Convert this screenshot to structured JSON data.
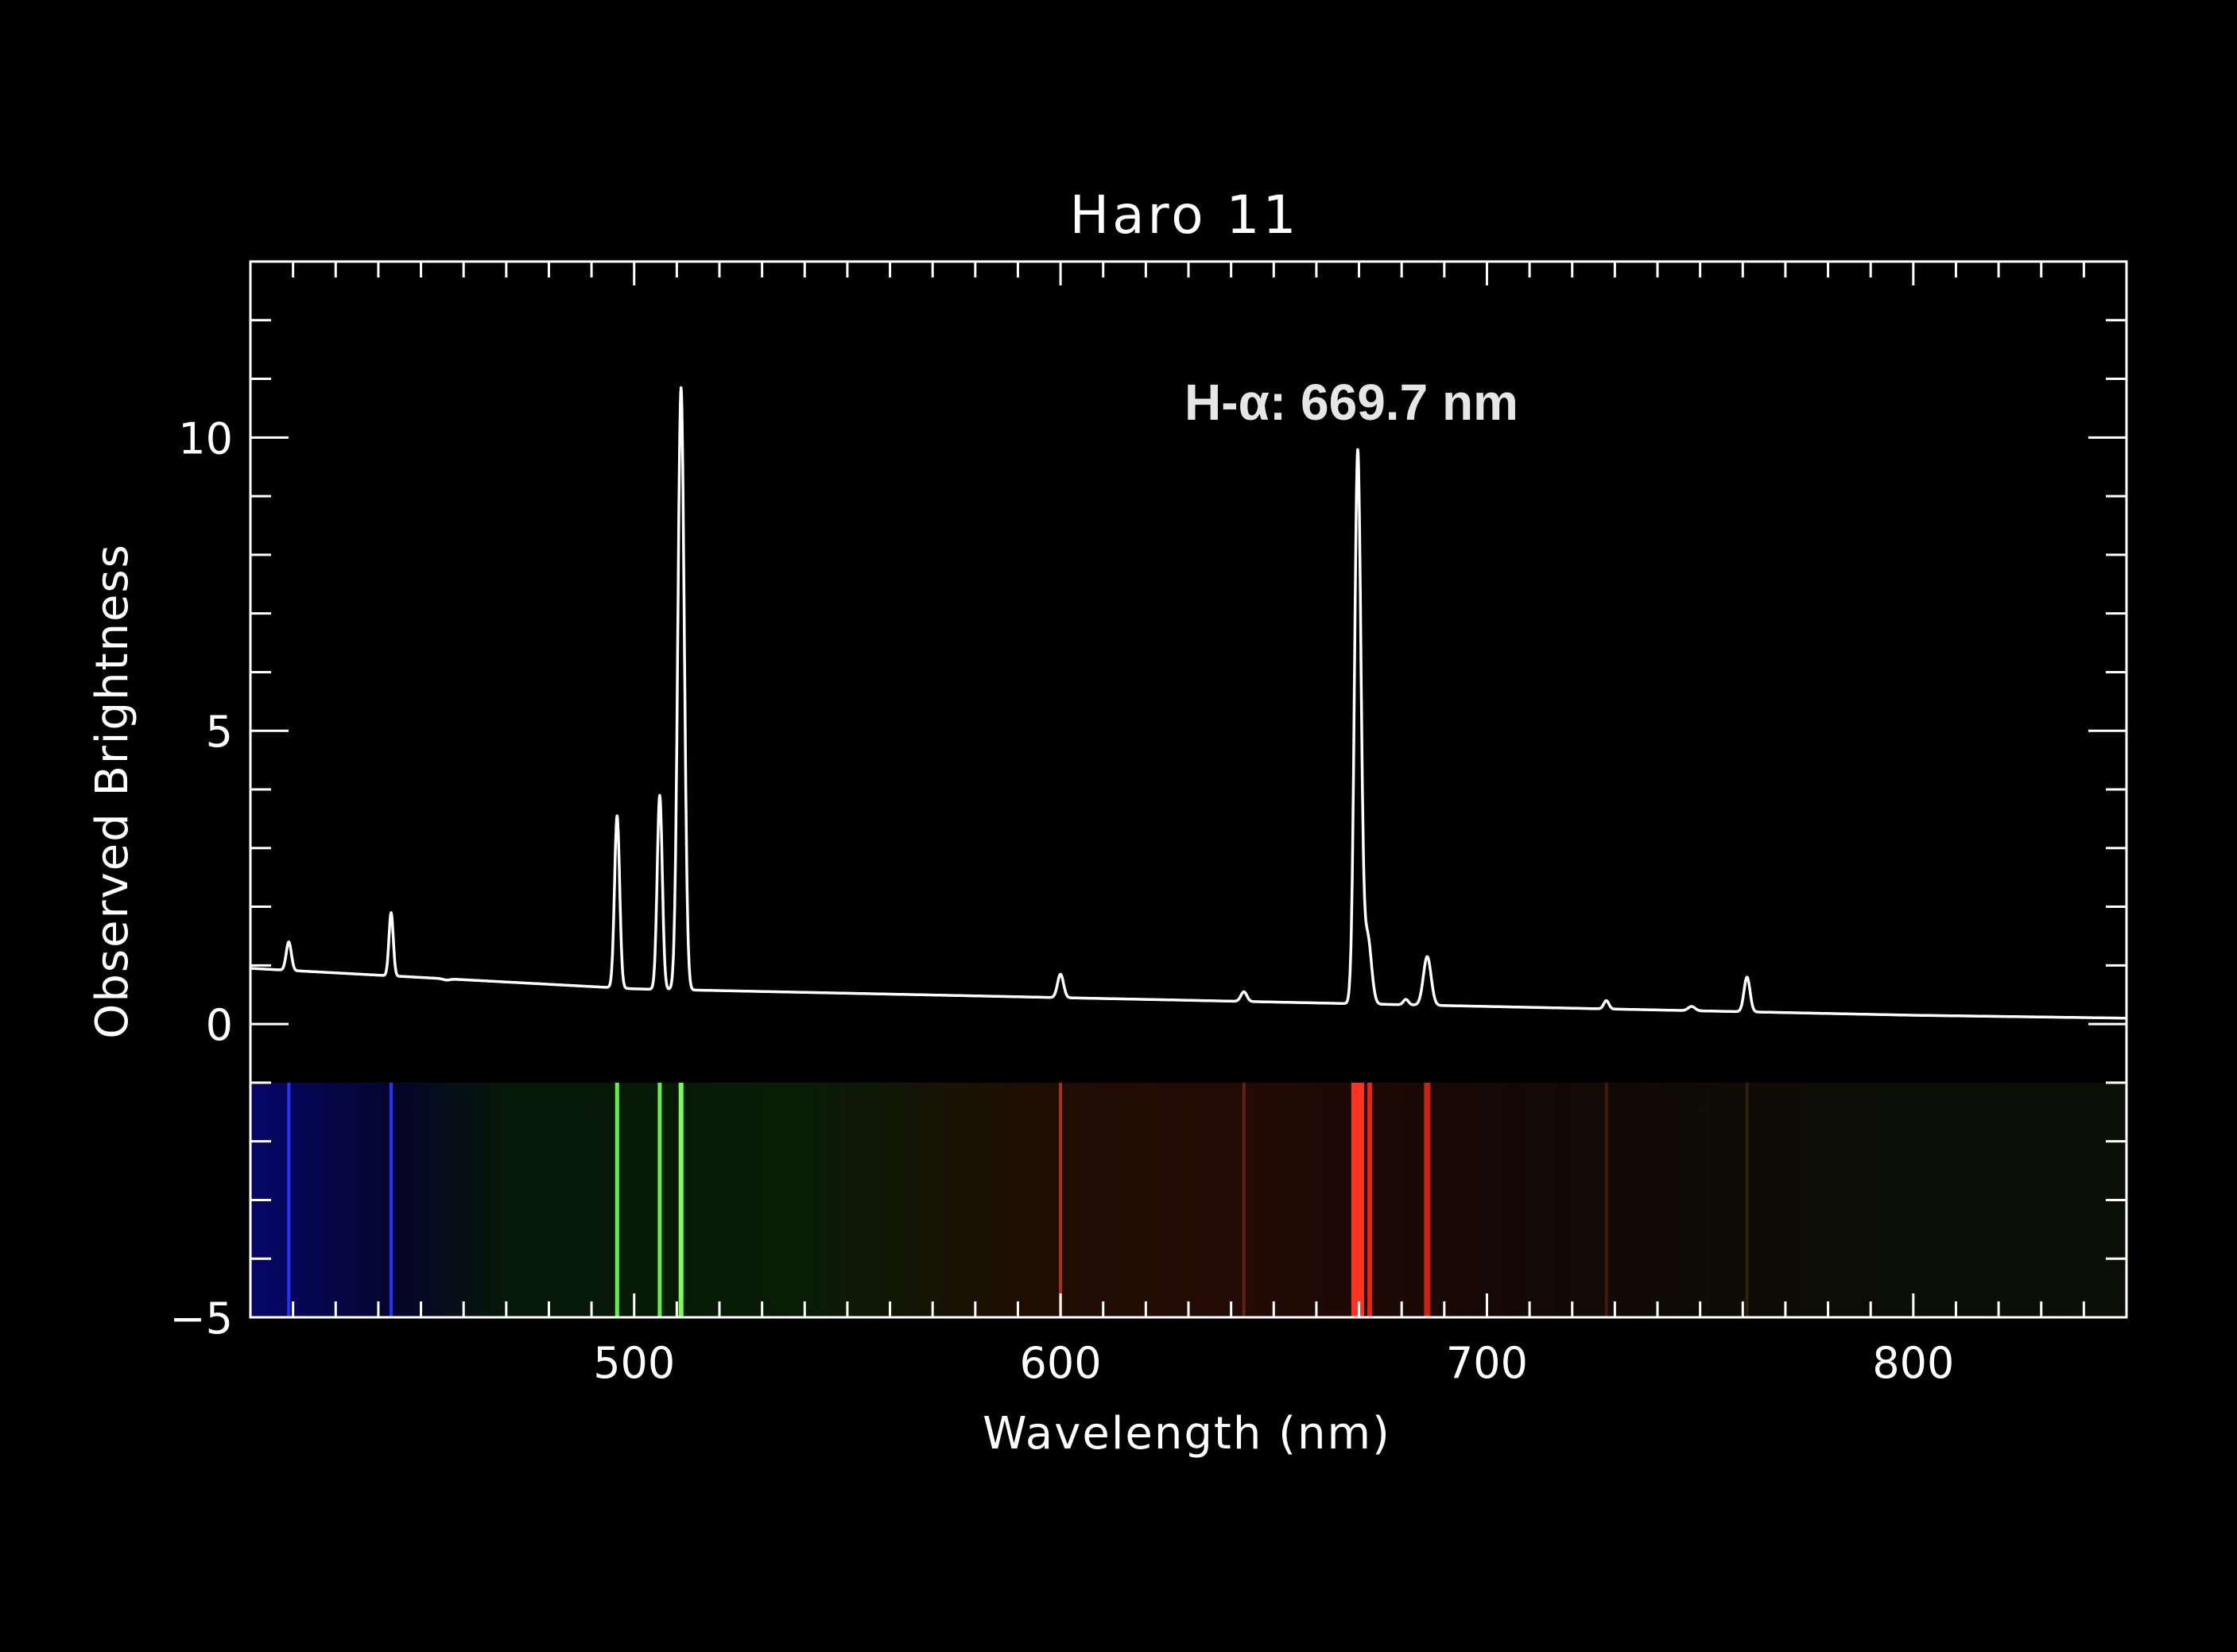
{
  "chart_data": {
    "type": "line",
    "title": "Haro 11",
    "xlabel": "Wavelength (nm)",
    "ylabel": "Observed Brightness",
    "xlim": [
      410,
      850
    ],
    "ylim": [
      -5,
      13
    ],
    "x_ticks": [
      500,
      600,
      700,
      800
    ],
    "x_tick_labels": [
      "500",
      "600",
      "700",
      "800"
    ],
    "y_ticks": [
      -5,
      0,
      5,
      10
    ],
    "y_tick_labels": [
      "−5",
      "0",
      "5",
      "10"
    ],
    "grid": false,
    "legend": "none",
    "annotation": {
      "label": "H-α: 669.7 nm",
      "x": 669.7
    },
    "continuum": [
      [
        410,
        0.95
      ],
      [
        500,
        0.6
      ],
      [
        600,
        0.45
      ],
      [
        700,
        0.3
      ],
      [
        800,
        0.15
      ],
      [
        850,
        0.1
      ]
    ],
    "emission_lines": [
      {
        "x": 419,
        "peak": 1.4,
        "sigma": 0.6
      },
      {
        "x": 443,
        "peak": 1.9,
        "sigma": 0.5
      },
      {
        "x": 456,
        "peak": 0.75,
        "sigma": 0.8
      },
      {
        "x": 496,
        "peak": 3.55,
        "sigma": 0.6
      },
      {
        "x": 506,
        "peak": 3.9,
        "sigma": 0.6
      },
      {
        "x": 511,
        "peak": 10.85,
        "sigma": 0.75
      },
      {
        "x": 600,
        "peak": 0.85,
        "sigma": 0.7
      },
      {
        "x": 643,
        "peak": 0.55,
        "sigma": 0.7
      },
      {
        "x": 669.7,
        "peak": 9.75,
        "sigma": 0.75
      },
      {
        "x": 672,
        "peak": 1.5,
        "sigma": 0.9
      },
      {
        "x": 681,
        "peak": 0.42,
        "sigma": 0.6
      },
      {
        "x": 686,
        "peak": 1.15,
        "sigma": 0.9
      },
      {
        "x": 728,
        "peak": 0.4,
        "sigma": 0.6
      },
      {
        "x": 748,
        "peak": 0.3,
        "sigma": 0.8
      },
      {
        "x": 761,
        "peak": 0.8,
        "sigma": 0.7
      }
    ],
    "spectrum_band": {
      "y_range": [
        -5,
        -1
      ],
      "background_stops": [
        {
          "x": 410,
          "color": "#06066a"
        },
        {
          "x": 445,
          "color": "#04062a"
        },
        {
          "x": 470,
          "color": "#061806"
        },
        {
          "x": 540,
          "color": "#081c06"
        },
        {
          "x": 590,
          "color": "#1e0e04"
        },
        {
          "x": 640,
          "color": "#240a04"
        },
        {
          "x": 700,
          "color": "#160804"
        },
        {
          "x": 760,
          "color": "#0c0c04"
        },
        {
          "x": 850,
          "color": "#0a1006"
        }
      ],
      "lines": [
        {
          "x": 419,
          "color": "#2233ff",
          "width": 4
        },
        {
          "x": 443,
          "color": "#2233ff",
          "width": 4
        },
        {
          "x": 496,
          "color": "#66ee44",
          "width": 5
        },
        {
          "x": 506,
          "color": "#66ee44",
          "width": 5
        },
        {
          "x": 511,
          "color": "#77ff55",
          "width": 6
        },
        {
          "x": 600,
          "color": "#aa3311",
          "width": 4
        },
        {
          "x": 643,
          "color": "#662211",
          "width": 4
        },
        {
          "x": 669.7,
          "color": "#ff3322",
          "width": 16
        },
        {
          "x": 672.5,
          "color": "#ee2211",
          "width": 6
        },
        {
          "x": 686,
          "color": "#cc2211",
          "width": 8
        },
        {
          "x": 728,
          "color": "#441a0a",
          "width": 4
        },
        {
          "x": 761,
          "color": "#33200a",
          "width": 4
        }
      ]
    }
  }
}
